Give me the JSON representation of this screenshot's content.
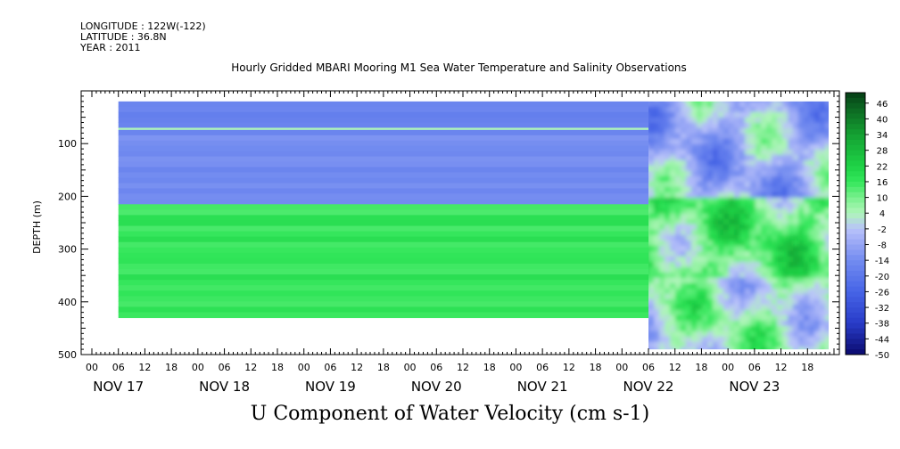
{
  "header": {
    "longitude": "LONGITUDE : 122W(-122)",
    "latitude": "LATITUDE : 36.8N",
    "year": "YEAR : 2011"
  },
  "chart_data": {
    "type": "heatmap",
    "title": "Hourly Gridded MBARI Mooring M1 Sea Water Temperature and Salinity Observations",
    "xlabel": "U Component of Water Velocity (cm s-1)",
    "ylabel": "DEPTH (m)",
    "y_ticks": [
      100,
      200,
      300,
      400,
      500
    ],
    "ylim": [
      500,
      0
    ],
    "x_hour_ticks": [
      "00",
      "06",
      "12",
      "18",
      "00",
      "06",
      "12",
      "18",
      "00",
      "06",
      "12",
      "18",
      "00",
      "06",
      "12",
      "18",
      "00",
      "06",
      "12",
      "18",
      "00",
      "06",
      "12",
      "18",
      "00",
      "06",
      "12",
      "18"
    ],
    "x_day_labels": [
      "NOV 17",
      "NOV 18",
      "NOV 19",
      "NOV 20",
      "NOV 21",
      "NOV 22",
      "NOV 23"
    ],
    "xlim_hours": [
      0,
      168
    ],
    "colorbar": {
      "levels": [
        "46",
        "40",
        "34",
        "28",
        "22",
        "16",
        "10",
        "4",
        "-2",
        "-8",
        "-14",
        "-20",
        "-26",
        "-32",
        "-38",
        "-44",
        "-50"
      ],
      "min": -50,
      "max": 50,
      "colors": {
        "negative": "#7b8ef0",
        "near_zero": "#b8f0c0",
        "positive": "#22e050"
      }
    },
    "data_start_hour": 6,
    "data_change_hour": 126,
    "data_end_hour": 168,
    "early_period_profile": [
      {
        "depth_from": 20,
        "depth_to": 70,
        "value": -16
      },
      {
        "depth_from": 70,
        "depth_to": 74,
        "value": 4
      },
      {
        "depth_from": 74,
        "depth_to": 215,
        "value": -14
      },
      {
        "depth_from": 215,
        "depth_to": 430,
        "value": 16
      }
    ],
    "late_period_description_values": {
      "depth_from": 20,
      "depth_to": 490
    }
  }
}
